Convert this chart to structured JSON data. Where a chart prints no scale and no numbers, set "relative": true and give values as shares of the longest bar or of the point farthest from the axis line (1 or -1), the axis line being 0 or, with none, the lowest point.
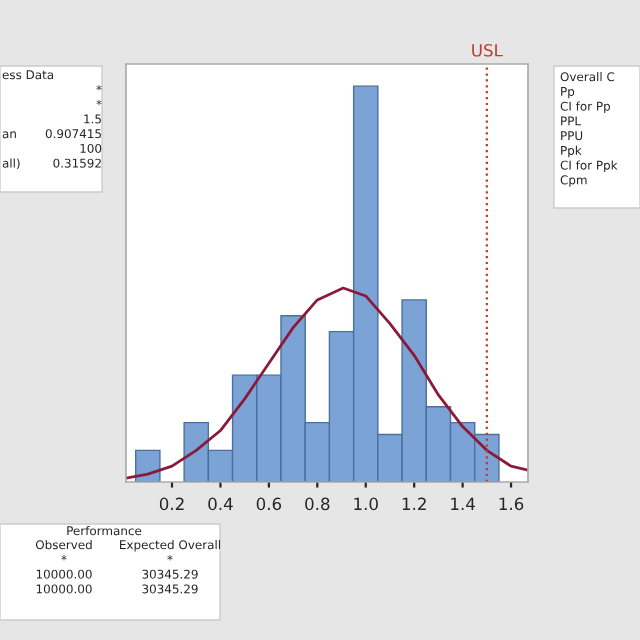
{
  "chart_data": {
    "type": "histogram",
    "relative": true,
    "bins": [
      0.05,
      0.15,
      0.25,
      0.35,
      0.45,
      0.55,
      0.65,
      0.75,
      0.85,
      0.95,
      1.05,
      1.15,
      1.25,
      1.35,
      1.45,
      1.55
    ],
    "values": [
      0.08,
      0,
      0.15,
      0.08,
      0.27,
      0.27,
      0.42,
      0.15,
      0.38,
      1,
      0.12,
      0.46,
      0.19,
      0.15,
      0.12
    ],
    "color": "#7ba3d6",
    "series": [
      {
        "type": "line",
        "color": "#8b1a3a",
        "x": [
          0.01,
          0.1,
          0.2,
          0.3,
          0.4,
          0.5,
          0.6,
          0.7,
          0.8,
          0.907,
          1.0,
          1.1,
          1.2,
          1.3,
          1.4,
          1.5,
          1.6,
          1.67
        ],
        "values": [
          0.01,
          0.02,
          0.04,
          0.08,
          0.13,
          0.21,
          0.3,
          0.39,
          0.46,
          0.49,
          0.47,
          0.4,
          0.32,
          0.22,
          0.14,
          0.08,
          0.04,
          0.03
        ]
      }
    ],
    "xlim": [
      0.01,
      1.67
    ],
    "xticks": [
      0.2,
      0.4,
      0.6,
      0.8,
      {
        "value": 1,
        "label": "1.0"
      },
      1.2,
      1.4,
      1.6
    ],
    "ref_lines": [
      {
        "axis": "x",
        "value": 1.5,
        "label": "USL",
        "color": "#c0392b",
        "line_style": "dotted"
      }
    ],
    "annotations": [
      "ess Data\n\n\n\nan\n\nall)",
      "\n*\n*\n1.5\n0.907415\n100\n0.31592",
      "Overall C\nPp\nCI for Pp\nPPL\nPPU\nPpk\nCI for Ppk\nCpm",
      "Performance",
      "Observed\n*\n10000.00\n10000.00",
      "Expected Overall\n*\n30345.29\n30345.29"
    ],
    "grid": false
  }
}
